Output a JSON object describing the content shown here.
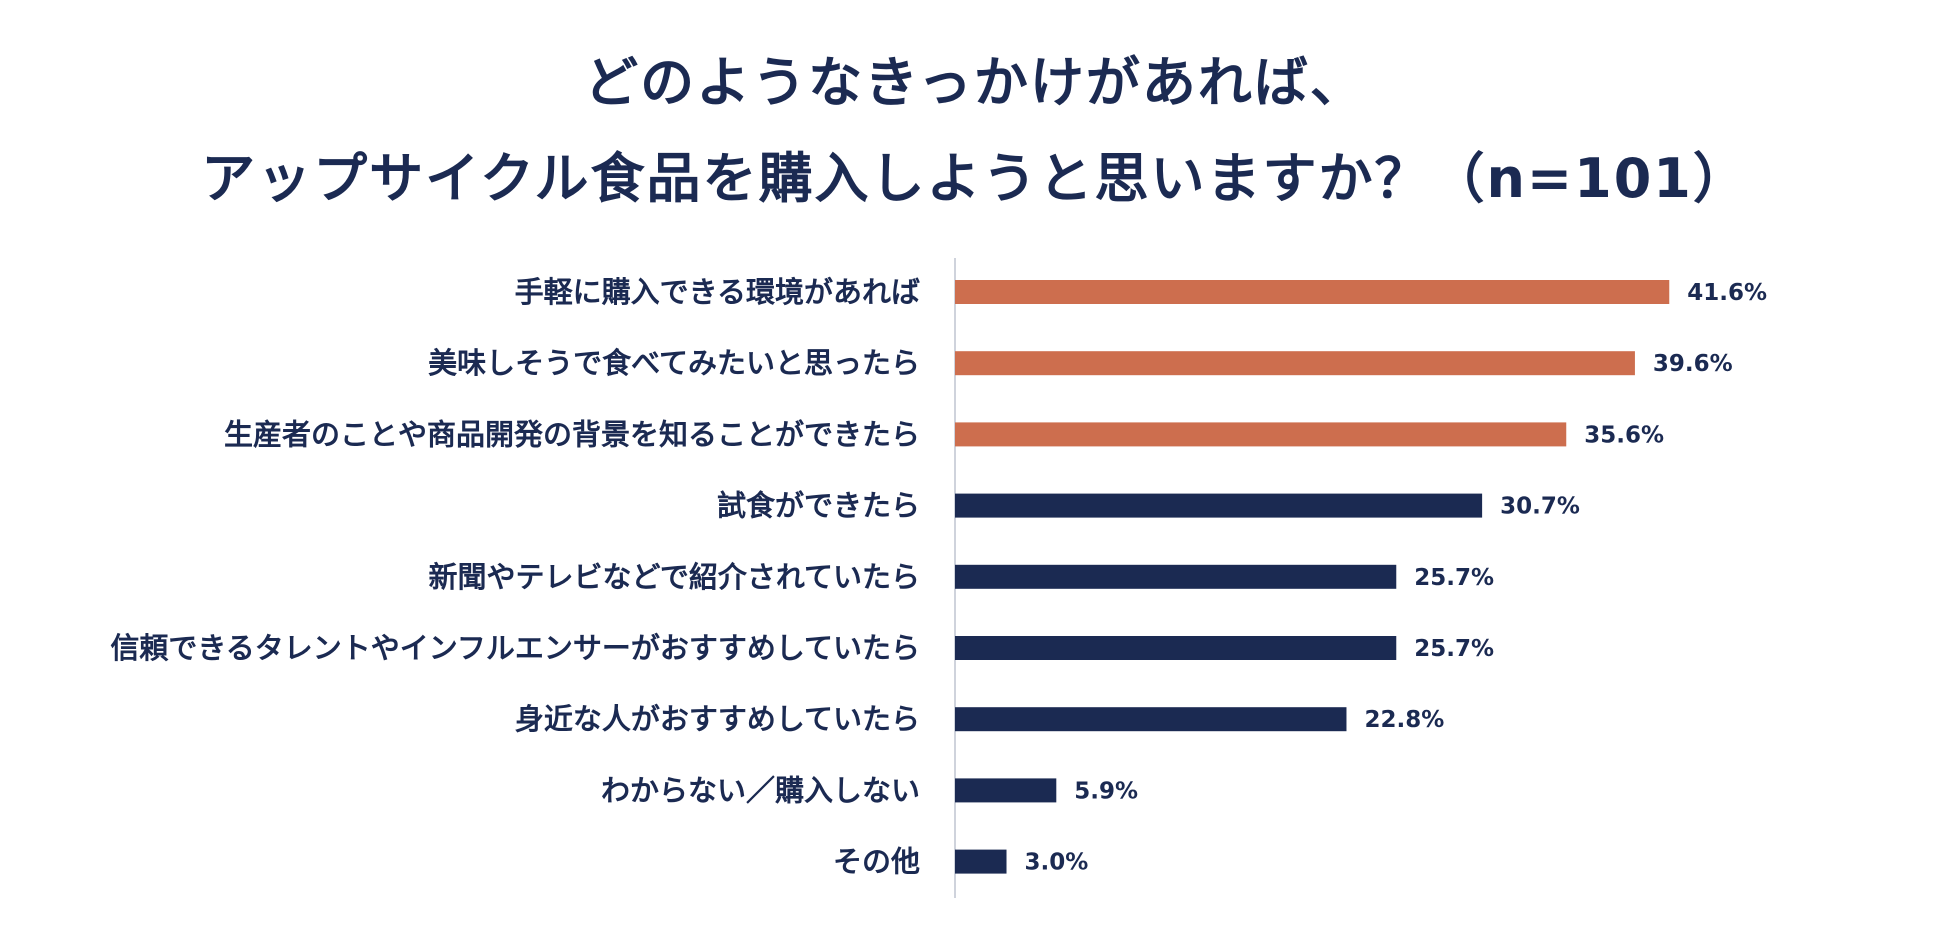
{
  "title_line1": "どのようなきっかけがあれば、",
  "title_line2": "アップサイクル食品を購入しようと思いますか？（n=101）",
  "colors": {
    "highlight": "#cd6e4e",
    "base": "#1b2a52",
    "axis": "#cfd3dc"
  },
  "chart_data": {
    "type": "bar",
    "orientation": "horizontal",
    "title": "どのようなきっかけがあれば、アップサイクル食品を購入しようと思いますか？（n=101）",
    "xlabel": "",
    "ylabel": "",
    "unit": "%",
    "xlim": [
      0,
      45
    ],
    "categories": [
      "手軽に購入できる環境があれば",
      "美味しそうで食べてみたいと思ったら",
      "生産者のことや商品開発の背景を知ることができたら",
      "試食ができたら",
      "新聞やテレビなどで紹介されていたら",
      "信頼できるタレントやインフルエンサーがおすすめしていたら",
      "身近な人がおすすめしていたら",
      "わからない／購入しない",
      "その他"
    ],
    "values": [
      41.6,
      39.6,
      35.6,
      30.7,
      25.7,
      25.7,
      22.8,
      5.9,
      3.0
    ],
    "value_labels": [
      "41.6%",
      "39.6%",
      "35.6%",
      "30.7%",
      "25.7%",
      "25.7%",
      "22.8%",
      "5.9%",
      "3.0%"
    ],
    "highlighted": [
      true,
      true,
      true,
      false,
      false,
      false,
      false,
      false,
      false
    ]
  }
}
